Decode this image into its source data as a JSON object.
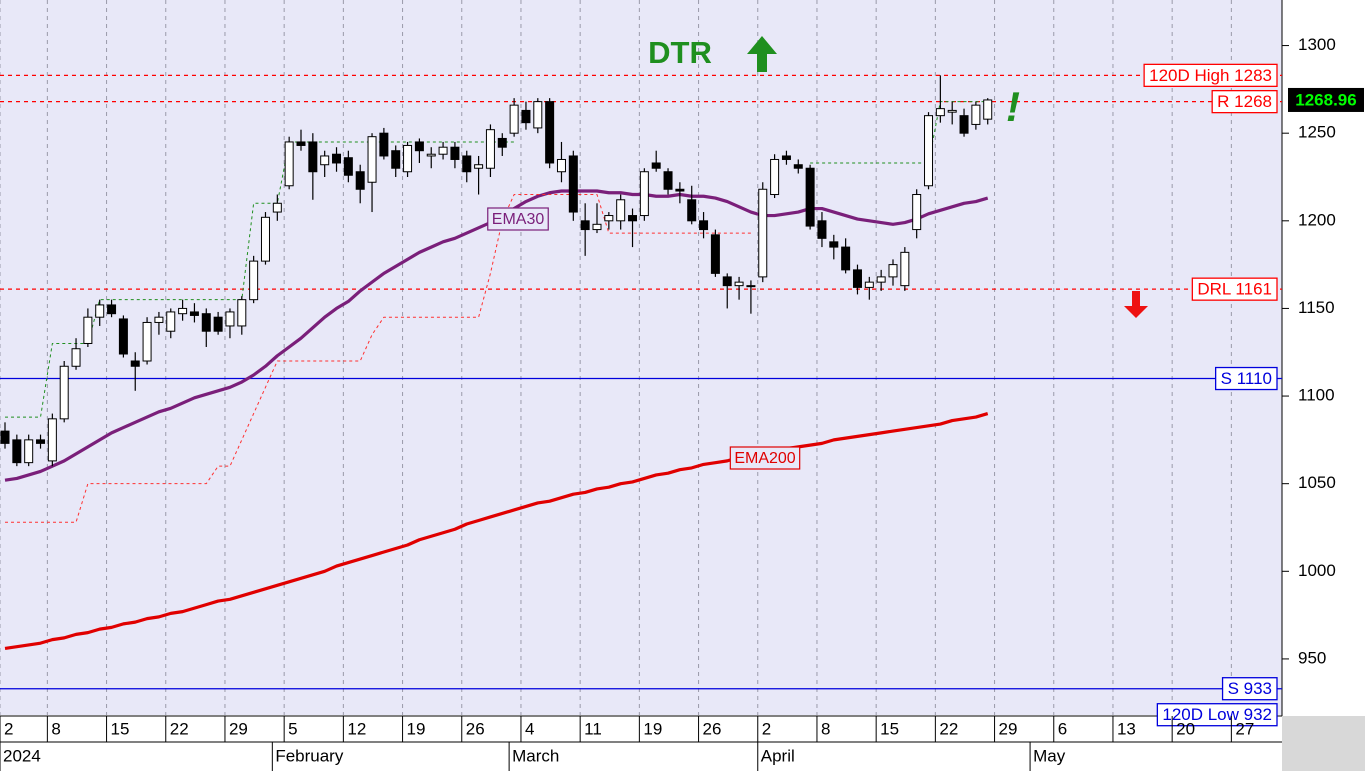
{
  "chart_data": {
    "type": "candlestick",
    "categories": [
      "2",
      null,
      null,
      null,
      "8",
      null,
      null,
      null,
      null,
      "15",
      null,
      null,
      null,
      null,
      "22",
      null,
      null,
      null,
      null,
      "29",
      null,
      null,
      null,
      null,
      "5",
      null,
      null,
      null,
      null,
      "12",
      null,
      null,
      null,
      null,
      "19",
      null,
      null,
      null,
      null,
      "26",
      null,
      null,
      null,
      null,
      "4",
      null,
      null,
      null,
      null,
      "11",
      null,
      null,
      null,
      null,
      "19",
      null,
      null,
      null,
      null,
      "26",
      null,
      null,
      null,
      null,
      "2",
      null,
      null,
      null,
      null,
      "8",
      null,
      null,
      null,
      null,
      "15",
      null,
      null,
      null,
      null,
      "22",
      null,
      null,
      null,
      null,
      "29",
      null,
      null,
      null,
      null,
      "6",
      null,
      null,
      null,
      null,
      "13",
      null,
      null,
      null,
      null,
      "20",
      null,
      null,
      null,
      null,
      "27",
      null,
      null,
      null,
      null
    ],
    "month_categories": [
      "2024",
      null,
      null,
      null,
      null,
      null,
      null,
      null,
      null,
      null,
      null,
      null,
      null,
      null,
      null,
      null,
      null,
      null,
      null,
      null,
      null,
      null,
      null,
      "February",
      null,
      null,
      null,
      null,
      null,
      null,
      null,
      null,
      null,
      null,
      null,
      null,
      null,
      null,
      null,
      null,
      null,
      null,
      null,
      "March",
      null,
      null,
      null,
      null,
      null,
      null,
      null,
      null,
      null,
      null,
      null,
      null,
      null,
      null,
      null,
      null,
      null,
      null,
      null,
      null,
      "April",
      null,
      null,
      null,
      null,
      null,
      null,
      null,
      null,
      null,
      null,
      null,
      null,
      null,
      null,
      null,
      null,
      null,
      null,
      null,
      null,
      null,
      null,
      "May",
      null,
      null,
      null,
      null,
      null,
      null,
      null,
      null,
      null,
      null,
      null,
      null,
      null,
      null,
      null,
      null,
      null,
      null,
      null,
      null,
      null
    ],
    "open": [
      1080,
      1075,
      1062,
      1075,
      1063,
      1087,
      1117,
      1130,
      1145,
      1152,
      1144,
      1120,
      1120,
      1142,
      1137,
      1147,
      1148,
      1147,
      1145,
      1140,
      1140,
      1155,
      1177,
      1205,
      1220,
      1245,
      1245,
      1232,
      1238,
      1236,
      1228,
      1222,
      1250,
      1240,
      1228,
      1245,
      1237,
      1238,
      1242,
      1237,
      1230,
      1230,
      1247,
      1250,
      1263,
      1253,
      1268,
      1228,
      1237,
      1200,
      1195,
      1200,
      1200,
      1203,
      1203,
      1233,
      1228,
      1218,
      1212,
      1200,
      1192,
      1168,
      1163,
      1163,
      1168,
      1215,
      1237,
      1232,
      1230,
      1200,
      1188,
      1185,
      1172,
      1162,
      1165,
      1168,
      1163,
      1195,
      1220,
      1260,
      1262,
      1260,
      1255,
      1258,
      null,
      null,
      null,
      null,
      null,
      null,
      null,
      null,
      null,
      null,
      null,
      null,
      null,
      null,
      null,
      null,
      null,
      null,
      null,
      null,
      null,
      null,
      null,
      null,
      null
    ],
    "high": [
      1085,
      1078,
      1078,
      1078,
      1090,
      1120,
      1133,
      1150,
      1155,
      1155,
      1146,
      1125,
      1145,
      1148,
      1150,
      1155,
      1153,
      1150,
      1148,
      1150,
      1157,
      1180,
      1205,
      1215,
      1248,
      1252,
      1250,
      1240,
      1242,
      1240,
      1232,
      1250,
      1253,
      1243,
      1245,
      1247,
      1242,
      1245,
      1245,
      1240,
      1237,
      1255,
      1250,
      1270,
      1268,
      1270,
      1270,
      1245,
      1240,
      1210,
      1210,
      1205,
      1215,
      1207,
      1230,
      1240,
      1230,
      1222,
      1220,
      1205,
      1195,
      1170,
      1168,
      1166,
      1222,
      1238,
      1240,
      1235,
      1232,
      1205,
      1192,
      1190,
      1175,
      1168,
      1172,
      1178,
      1185,
      1218,
      1262,
      1283,
      1268,
      1264,
      1268,
      1270,
      null,
      null,
      null,
      null,
      null,
      null,
      null,
      null,
      null,
      null,
      null,
      null,
      null,
      null,
      null,
      null,
      null,
      null,
      null,
      null,
      null,
      null,
      null,
      null,
      null
    ],
    "low": [
      1070,
      1060,
      1060,
      1070,
      1060,
      1085,
      1115,
      1128,
      1140,
      1145,
      1122,
      1103,
      1118,
      1135,
      1133,
      1143,
      1142,
      1128,
      1135,
      1133,
      1135,
      1153,
      1175,
      1200,
      1218,
      1240,
      1212,
      1225,
      1228,
      1222,
      1210,
      1205,
      1235,
      1225,
      1225,
      1233,
      1230,
      1235,
      1230,
      1222,
      1215,
      1225,
      1237,
      1248,
      1252,
      1250,
      1230,
      1222,
      1200,
      1180,
      1193,
      1195,
      1195,
      1185,
      1200,
      1228,
      1215,
      1210,
      1198,
      1190,
      1168,
      1150,
      1155,
      1147,
      1165,
      1213,
      1232,
      1227,
      1195,
      1185,
      1178,
      1170,
      1158,
      1155,
      1160,
      1163,
      1160,
      1190,
      1218,
      1256,
      1255,
      1248,
      1252,
      1255,
      null,
      null,
      null,
      null,
      null,
      null,
      null,
      null,
      null,
      null,
      null,
      null,
      null,
      null,
      null,
      null,
      null,
      null,
      null,
      null,
      null,
      null,
      null,
      null,
      null
    ],
    "close": [
      1073,
      1062,
      1075,
      1073,
      1087,
      1117,
      1127,
      1145,
      1152,
      1147,
      1124,
      1117,
      1142,
      1145,
      1148,
      1150,
      1146,
      1137,
      1137,
      1148,
      1155,
      1177,
      1202,
      1210,
      1245,
      1243,
      1228,
      1237,
      1233,
      1226,
      1218,
      1248,
      1237,
      1230,
      1243,
      1240,
      1238,
      1242,
      1235,
      1228,
      1232,
      1252,
      1242,
      1266,
      1256,
      1268,
      1233,
      1235,
      1205,
      1195,
      1198,
      1203,
      1212,
      1200,
      1228,
      1230,
      1218,
      1217,
      1200,
      1195,
      1170,
      1163,
      1165,
      1163,
      1218,
      1235,
      1235,
      1230,
      1197,
      1190,
      1185,
      1172,
      1162,
      1165,
      1168,
      1175,
      1182,
      1215,
      1260,
      1264,
      1263,
      1250,
      1266,
      1268.96,
      null,
      null,
      null,
      null,
      null,
      null,
      null,
      null,
      null,
      null,
      null,
      null,
      null,
      null,
      null,
      null,
      null,
      null,
      null,
      null,
      null,
      null,
      null,
      null,
      null
    ],
    "series": [
      {
        "name": "EMA30",
        "color": "#7a1f7a",
        "values": [
          1052,
          1053,
          1055,
          1057,
          1060,
          1063,
          1067,
          1071,
          1075,
          1079,
          1082,
          1085,
          1088,
          1091,
          1093,
          1096,
          1099,
          1101,
          1103,
          1105,
          1108,
          1112,
          1117,
          1123,
          1128,
          1133,
          1139,
          1145,
          1150,
          1154,
          1160,
          1165,
          1170,
          1174,
          1178,
          1182,
          1185,
          1188,
          1190,
          1193,
          1196,
          1199,
          1203,
          1207,
          1211,
          1214,
          1216,
          1217,
          1217,
          1217,
          1217,
          1216,
          1216,
          1215,
          1215,
          1214,
          1214,
          1215,
          1214,
          1214,
          1213,
          1211,
          1208,
          1205,
          1203,
          1203,
          1204,
          1205,
          1207,
          1207,
          1205,
          1203,
          1201,
          1200,
          1199,
          1198,
          1199,
          1201,
          1204,
          1206,
          1208,
          1210,
          1211,
          1213,
          null,
          null,
          null,
          null,
          null,
          null,
          null,
          null,
          null,
          null,
          null,
          null,
          null,
          null,
          null,
          null,
          null,
          null,
          null,
          null,
          null,
          null,
          null,
          null,
          null
        ]
      },
      {
        "name": "EMA200",
        "color": "#e00000",
        "values": [
          956,
          957,
          958,
          959,
          961,
          962,
          964,
          965,
          967,
          968,
          970,
          971,
          973,
          974,
          976,
          977,
          979,
          981,
          983,
          984,
          986,
          988,
          990,
          992,
          994,
          996,
          998,
          1000,
          1003,
          1005,
          1007,
          1009,
          1011,
          1013,
          1015,
          1018,
          1020,
          1022,
          1024,
          1027,
          1029,
          1031,
          1033,
          1035,
          1037,
          1039,
          1040,
          1042,
          1044,
          1045,
          1047,
          1048,
          1050,
          1051,
          1053,
          1055,
          1056,
          1058,
          1059,
          1061,
          1062,
          1063,
          1065,
          1066,
          1067,
          1068,
          1070,
          1071,
          1072,
          1073,
          1075,
          1076,
          1077,
          1078,
          1079,
          1080,
          1081,
          1082,
          1083,
          1084,
          1086,
          1087,
          1088,
          1090,
          null,
          null,
          null,
          null,
          null,
          null,
          null,
          null,
          null,
          null,
          null,
          null,
          null,
          null,
          null,
          null,
          null,
          null,
          null,
          null,
          null,
          null,
          null,
          null,
          null
        ]
      },
      {
        "color": "#ff3030",
        "dashed": true,
        "values": [
          1028,
          1028,
          1028,
          1028,
          1028,
          1028,
          1028,
          1050,
          1050,
          1050,
          1050,
          1050,
          1050,
          1050,
          1050,
          1050,
          1050,
          1050,
          1060,
          1060,
          1075,
          1090,
          1105,
          1120,
          1120,
          1120,
          1120,
          1120,
          1120,
          1120,
          1120,
          1135,
          1145,
          1145,
          1145,
          1145,
          1145,
          1145,
          1145,
          1145,
          1145,
          1170,
          1200,
          1215,
          1215,
          1215,
          1215,
          1215,
          1215,
          1215,
          1215,
          1193,
          1193,
          1193,
          1193,
          1193,
          1193,
          1193,
          1193,
          1193,
          1193,
          1193,
          1193,
          1193,
          null,
          null,
          null,
          null,
          null,
          null,
          null,
          null,
          null,
          null,
          null,
          null,
          null,
          null,
          null,
          null,
          null,
          null,
          null,
          null,
          null,
          null,
          null,
          null,
          null,
          null,
          null,
          null,
          null,
          null,
          null,
          null,
          null,
          null,
          null,
          null,
          null,
          null,
          null,
          null,
          null,
          null,
          null,
          null,
          null
        ]
      },
      {
        "color": "#1f8f1f",
        "dashed": true,
        "values": [
          1088,
          1088,
          1088,
          1088,
          1130,
          1130,
          1130,
          1130,
          1155,
          1155,
          1155,
          1155,
          1155,
          1155,
          1155,
          1155,
          1155,
          1155,
          1155,
          1155,
          1155,
          1210,
          1210,
          1210,
          1245,
          1245,
          1245,
          1245,
          1245,
          1245,
          1245,
          1245,
          1245,
          1245,
          1245,
          1245,
          1245,
          1245,
          1245,
          1245,
          1245,
          1245,
          1245,
          1245,
          null,
          null,
          null,
          null,
          null,
          null,
          null,
          null,
          null,
          null,
          null,
          null,
          null,
          null,
          null,
          null,
          null,
          null,
          null,
          null,
          null,
          null,
          null,
          null,
          1233,
          1233,
          1233,
          1233,
          1233,
          1233,
          1233,
          1233,
          1233,
          1233,
          1233,
          1268,
          1268,
          1268,
          1268,
          1268,
          null,
          null,
          null,
          null,
          null,
          null,
          null,
          null,
          null,
          null,
          null,
          null,
          null,
          null,
          null,
          null,
          null,
          null,
          null,
          null,
          null,
          null,
          null,
          null,
          null
        ]
      }
    ],
    "levels": [
      {
        "label": "120D High 1283",
        "value": 1283,
        "color": "#ff0000",
        "line": "dashed"
      },
      {
        "label": "R 1268",
        "value": 1268,
        "color": "#ff0000",
        "line": "dashed"
      },
      {
        "label": "DRL 1161",
        "value": 1161,
        "color": "#ff0000",
        "line": "dashed"
      },
      {
        "label": "S 1110",
        "value": 1110,
        "color": "#0000dd",
        "line": "solid"
      },
      {
        "label": "S 933",
        "value": 933,
        "color": "#0000dd",
        "line": "solid"
      },
      {
        "label": "120D Low 932",
        "value": 932,
        "color": "#0000dd",
        "line": "none"
      }
    ],
    "annotations": [
      "DTR",
      "!"
    ],
    "ylim": [
      918,
      1326
    ],
    "yticks": [
      950,
      1000,
      1050,
      1100,
      1150,
      1200,
      1250,
      1300
    ],
    "grid": true
  }
}
